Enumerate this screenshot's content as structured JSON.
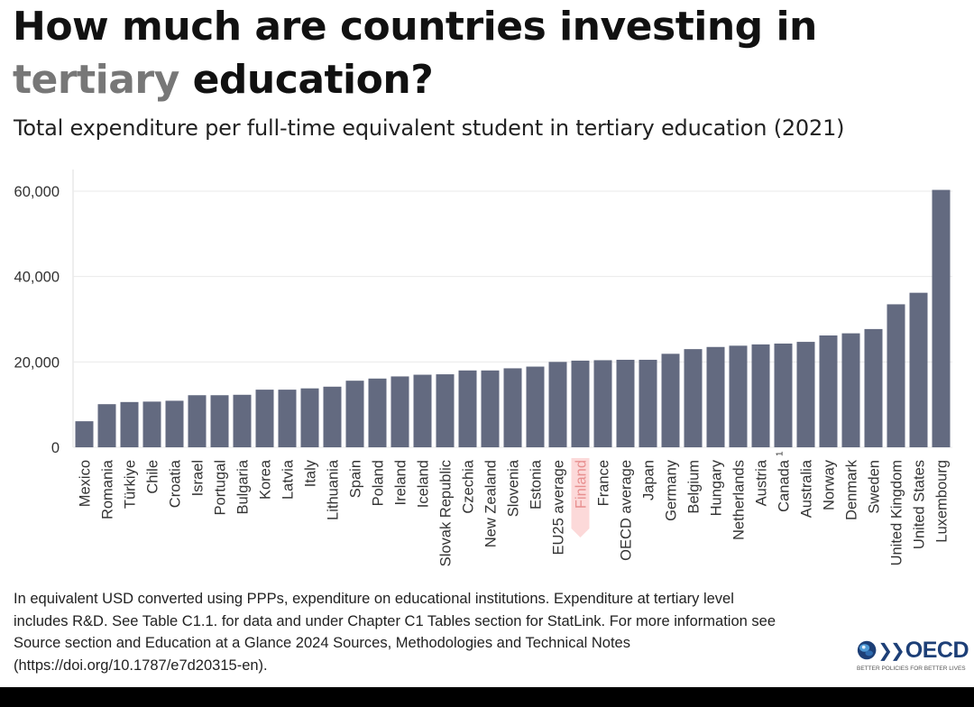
{
  "header": {
    "title_part1": "How much are countries investing in",
    "title_highlight": "tertiary",
    "title_part2": " education?",
    "subtitle": "Total expenditure per full-time equivalent student in tertiary education (2021)"
  },
  "chart_data": {
    "type": "bar",
    "title": "How much are countries investing in tertiary education?",
    "subtitle": "Total expenditure per full-time equivalent student in tertiary education (2021)",
    "xlabel": "",
    "ylabel": "",
    "ylim": [
      0,
      60000
    ],
    "yticks": [
      0,
      20000,
      40000,
      60000
    ],
    "ytick_labels": [
      "0",
      "20,000",
      "40,000",
      "60,000"
    ],
    "grid": "horizontal",
    "categories": [
      "Mexico",
      "Romania",
      "Türkiye",
      "Chile",
      "Croatia",
      "Israel",
      "Portugal",
      "Bulgaria",
      "Korea",
      "Latvia",
      "Italy",
      "Lithuania",
      "Spain",
      "Poland",
      "Ireland",
      "Iceland",
      "Slovak Republic",
      "Czechia",
      "New Zealand",
      "Slovenia",
      "Estonia",
      "EU25 average",
      "Finland",
      "France",
      "OECD average",
      "Japan",
      "Germany",
      "Belgium",
      "Hungary",
      "Netherlands",
      "Austria",
      "Canada",
      "Australia",
      "Norway",
      "Denmark",
      "Sweden",
      "United Kingdom",
      "United States",
      "Luxembourg"
    ],
    "category_superscripts": {
      "Canada": "1"
    },
    "values": [
      6100,
      10100,
      10600,
      10700,
      10900,
      12200,
      12200,
      12300,
      13500,
      13500,
      13800,
      14200,
      15600,
      16100,
      16600,
      17000,
      17100,
      18000,
      18000,
      18500,
      18900,
      20000,
      20300,
      20400,
      20500,
      20500,
      21900,
      23000,
      23500,
      23800,
      24100,
      24300,
      24700,
      26200,
      26700,
      27700,
      33500,
      36200,
      60300
    ],
    "highlight_category": "Finland",
    "colors": {
      "bar": "#636a80",
      "highlight_label_bg": "#fcd9d9",
      "highlight_label_text": "#e88f8f",
      "grid": "#e9e9e9",
      "axis_text": "#333333"
    }
  },
  "footnote": {
    "lines": [
      "In equivalent USD converted using PPPs, expenditure on educational institutions. Expenditure at tertiary level",
      "includes R&D. See Table C1.1. for data and under Chapter C1 Tables section for StatLink. For more information see",
      "Source section and Education at a Glance 2024 Sources, Methodologies and Technical Notes",
      "(https://doi.org/10.1787/e7d20315-en)."
    ]
  },
  "logo": {
    "wordmark": "OECD",
    "tagline": "BETTER POLICIES FOR BETTER LIVES",
    "icon": "oecd-globe-icon",
    "colors": {
      "brand": "#1d3f77",
      "globe_light": "#4f9ad6"
    }
  }
}
